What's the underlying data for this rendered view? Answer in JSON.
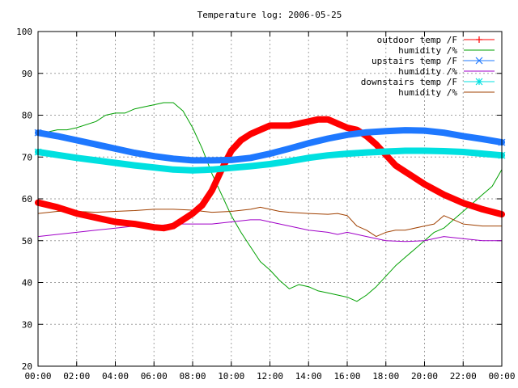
{
  "chart_data": {
    "type": "line",
    "title": "Temperature log: 2006-05-25",
    "xlabel": "",
    "ylabel": "",
    "x_ticks": [
      "00:00",
      "02:00",
      "04:00",
      "06:00",
      "08:00",
      "10:00",
      "12:00",
      "14:00",
      "16:00",
      "18:00",
      "20:00",
      "22:00",
      "00:00"
    ],
    "xlim": [
      0,
      24
    ],
    "ylim": [
      20,
      100
    ],
    "y_ticks": [
      20,
      30,
      40,
      50,
      60,
      70,
      80,
      90,
      100
    ],
    "grid": true,
    "legend_position": "top-right",
    "series": [
      {
        "name": "outdoor temp /F",
        "color": "#ff0000",
        "marker": "plus",
        "x": [
          0,
          1,
          2,
          3,
          4,
          5,
          6,
          6.5,
          7,
          7.5,
          8,
          8.5,
          9,
          9.5,
          10,
          10.5,
          11,
          11.5,
          12,
          12.5,
          13,
          13.5,
          14,
          14.5,
          15,
          15.5,
          16,
          16.5,
          17,
          17.5,
          18,
          18.5,
          19,
          19.5,
          20,
          21,
          22,
          23,
          24
        ],
        "y": [
          59.1,
          58,
          56.5,
          55.5,
          54.5,
          54,
          53.2,
          53,
          53.5,
          55,
          56.5,
          58.5,
          62,
          67,
          71.5,
          74,
          75.5,
          76.5,
          77.5,
          77.5,
          77.5,
          78,
          78.5,
          79,
          79,
          78,
          77,
          76.5,
          75,
          73,
          70.5,
          68,
          66.5,
          65,
          63.5,
          61,
          59,
          57.5,
          56.3
        ]
      },
      {
        "name": "humidity /%",
        "color": "#00a000",
        "marker": "none",
        "x": [
          0,
          0.5,
          1,
          1.5,
          2,
          3,
          3.5,
          4,
          4.5,
          5,
          5.5,
          6,
          6.5,
          7,
          7.5,
          8,
          8.5,
          9,
          9.5,
          10,
          10.5,
          11,
          11.5,
          12,
          12.5,
          13,
          13.5,
          14,
          14.5,
          15,
          15.5,
          16,
          16.5,
          17,
          17.5,
          18,
          18.5,
          19,
          19.5,
          20,
          20.5,
          21,
          21.5,
          22,
          22.5,
          23,
          23.5,
          24
        ],
        "y": [
          75.5,
          76,
          76.5,
          76.5,
          77,
          78.5,
          80,
          80.5,
          80.5,
          81.5,
          82,
          82.5,
          83,
          83,
          81,
          77,
          72,
          66,
          61,
          56,
          52,
          48.5,
          45,
          43,
          40.5,
          38.5,
          39.5,
          39,
          38,
          37.5,
          37,
          36.5,
          35.5,
          37,
          39,
          41.5,
          44,
          46,
          48,
          50,
          52,
          53,
          55,
          57,
          59,
          61,
          63,
          67
        ]
      },
      {
        "name": "upstairs temp /F",
        "color": "#1e78ff",
        "marker": "cross",
        "x": [
          0,
          1,
          2,
          3,
          4,
          5,
          6,
          7,
          8,
          9,
          10,
          11,
          12,
          13,
          14,
          15,
          16,
          17,
          18,
          19,
          20,
          21,
          22,
          23,
          24
        ],
        "y": [
          75.8,
          75,
          74,
          73,
          72,
          71,
          70.2,
          69.6,
          69.2,
          69.2,
          69.3,
          69.8,
          70.8,
          72,
          73.3,
          74.4,
          75.3,
          75.9,
          76.2,
          76.4,
          76.3,
          75.8,
          75,
          74.3,
          73.5
        ]
      },
      {
        "name": "humidity /%",
        "color": "#a000c8",
        "marker": "none",
        "x": [
          0,
          1,
          2,
          3,
          4,
          5,
          6,
          7,
          8,
          9,
          10,
          11,
          11.5,
          12,
          13,
          14,
          15,
          15.5,
          16,
          17,
          18,
          19,
          20,
          21,
          22,
          23,
          24
        ],
        "y": [
          51,
          51.5,
          52,
          52.5,
          53,
          53.5,
          53.5,
          54,
          54,
          54,
          54.5,
          55,
          55,
          54.5,
          53.5,
          52.5,
          52,
          51.5,
          52,
          51,
          50,
          49.8,
          50,
          51,
          50.5,
          50,
          50
        ]
      },
      {
        "name": "downstairs temp /F",
        "color": "#00e0e0",
        "marker": "star",
        "x": [
          0,
          1,
          2,
          3,
          4,
          5,
          6,
          7,
          8,
          9,
          10,
          11,
          12,
          13,
          14,
          15,
          16,
          17,
          18,
          19,
          20,
          21,
          22,
          23,
          24
        ],
        "y": [
          71.2,
          70.5,
          69.8,
          69.2,
          68.6,
          68,
          67.5,
          67,
          66.8,
          67,
          67.4,
          67.8,
          68.3,
          69,
          69.8,
          70.4,
          70.8,
          71.1,
          71.3,
          71.5,
          71.5,
          71.4,
          71.2,
          70.8,
          70.4
        ]
      },
      {
        "name": "humidity /%",
        "color": "#a04000",
        "marker": "none",
        "x": [
          0,
          1,
          2,
          3,
          4,
          5,
          6,
          7,
          8,
          9,
          10,
          11,
          11.5,
          12,
          12.5,
          13,
          14,
          15,
          15.5,
          16,
          16.5,
          17,
          17.5,
          18,
          18.5,
          19,
          20,
          20.5,
          21,
          22,
          23,
          24
        ],
        "y": [
          56.5,
          57,
          57,
          56.8,
          57,
          57.2,
          57.5,
          57.5,
          57.3,
          56.8,
          57,
          57.5,
          58,
          57.5,
          57,
          56.8,
          56.5,
          56.3,
          56.5,
          56,
          53.5,
          52.5,
          51,
          52,
          52.5,
          52.5,
          53.5,
          54,
          56,
          54,
          53.5,
          53.5
        ]
      }
    ]
  }
}
